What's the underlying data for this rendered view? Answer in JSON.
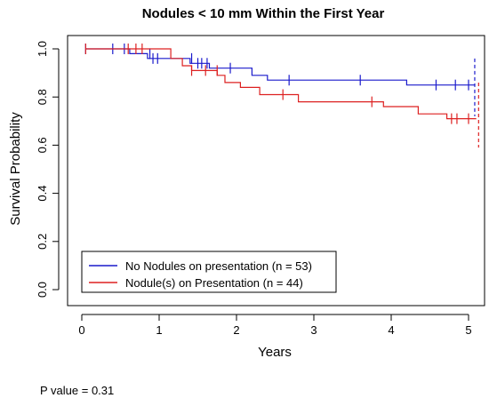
{
  "chart_data": {
    "type": "line",
    "subtype": "kaplan-meier",
    "title": "Nodules < 10 mm Within the First Year",
    "xlabel": "Years",
    "ylabel": "Survival Probability",
    "xlim": [
      0,
      5.1
    ],
    "ylim": [
      0,
      1.0
    ],
    "xticks": [
      0,
      1,
      2,
      3,
      4,
      5
    ],
    "yticks": [
      0.0,
      0.2,
      0.4,
      0.6,
      0.8,
      1.0
    ],
    "legend_position": "bottom-left",
    "series": [
      {
        "name": "No Nodules on presentation (n = 53)",
        "color": "#1a1acc",
        "steps": [
          [
            0.05,
            1.0
          ],
          [
            0.62,
            1.0
          ],
          [
            0.62,
            0.98
          ],
          [
            0.85,
            0.98
          ],
          [
            0.85,
            0.96
          ],
          [
            1.4,
            0.96
          ],
          [
            1.4,
            0.94
          ],
          [
            1.65,
            0.94
          ],
          [
            1.65,
            0.92
          ],
          [
            2.2,
            0.92
          ],
          [
            2.2,
            0.89
          ],
          [
            2.4,
            0.89
          ],
          [
            2.4,
            0.87
          ],
          [
            4.2,
            0.87
          ],
          [
            4.2,
            0.85
          ],
          [
            5.08,
            0.85
          ]
        ],
        "censor_marks": [
          [
            0.05,
            1.0
          ],
          [
            0.4,
            1.0
          ],
          [
            0.55,
            1.0
          ],
          [
            0.88,
            0.98
          ],
          [
            0.92,
            0.96
          ],
          [
            0.98,
            0.96
          ],
          [
            1.42,
            0.96
          ],
          [
            1.5,
            0.94
          ],
          [
            1.55,
            0.94
          ],
          [
            1.62,
            0.94
          ],
          [
            1.92,
            0.92
          ],
          [
            2.68,
            0.87
          ],
          [
            3.6,
            0.87
          ],
          [
            4.58,
            0.85
          ],
          [
            4.83,
            0.85
          ],
          [
            5.0,
            0.85
          ]
        ],
        "ci_bound_at_end": [
          0.72,
          0.96
        ]
      },
      {
        "name": "Nodule(s) on Presentation (n = 44)",
        "color": "#dd2020",
        "steps": [
          [
            0.05,
            1.0
          ],
          [
            1.15,
            1.0
          ],
          [
            1.15,
            0.96
          ],
          [
            1.3,
            0.96
          ],
          [
            1.3,
            0.93
          ],
          [
            1.42,
            0.93
          ],
          [
            1.42,
            0.91
          ],
          [
            1.75,
            0.91
          ],
          [
            1.75,
            0.89
          ],
          [
            1.85,
            0.89
          ],
          [
            1.85,
            0.86
          ],
          [
            2.05,
            0.86
          ],
          [
            2.05,
            0.84
          ],
          [
            2.3,
            0.84
          ],
          [
            2.3,
            0.81
          ],
          [
            2.8,
            0.81
          ],
          [
            2.8,
            0.78
          ],
          [
            3.9,
            0.78
          ],
          [
            3.9,
            0.76
          ],
          [
            4.35,
            0.76
          ],
          [
            4.35,
            0.73
          ],
          [
            4.72,
            0.73
          ],
          [
            4.72,
            0.71
          ],
          [
            5.1,
            0.71
          ]
        ],
        "censor_marks": [
          [
            0.05,
            1.0
          ],
          [
            0.6,
            1.0
          ],
          [
            0.7,
            1.0
          ],
          [
            0.78,
            1.0
          ],
          [
            1.42,
            0.91
          ],
          [
            1.6,
            0.91
          ],
          [
            1.75,
            0.91
          ],
          [
            2.6,
            0.81
          ],
          [
            3.75,
            0.78
          ],
          [
            4.78,
            0.71
          ],
          [
            4.85,
            0.71
          ],
          [
            5.0,
            0.71
          ]
        ],
        "ci_bound_at_end": [
          0.59,
          0.86
        ]
      }
    ],
    "annotation": "P value = 0.31"
  }
}
